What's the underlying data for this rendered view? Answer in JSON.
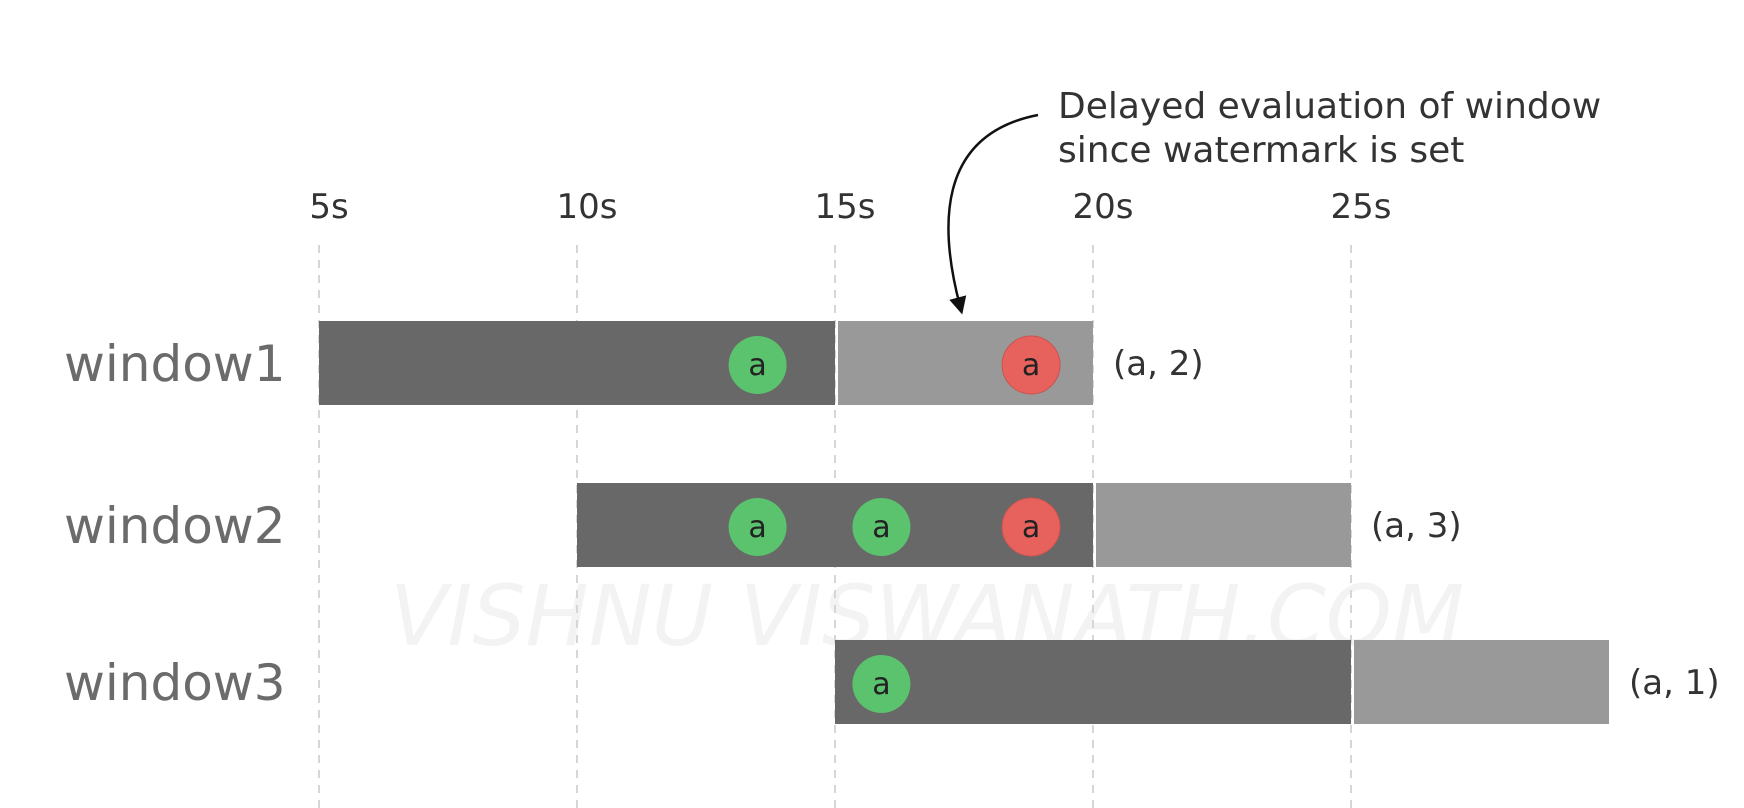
{
  "time_axis": {
    "unit": "s",
    "ticks": [
      {
        "value": 5,
        "label": "5s"
      },
      {
        "value": 10,
        "label": "10s"
      },
      {
        "value": 15,
        "label": "15s"
      },
      {
        "value": 20,
        "label": "20s"
      },
      {
        "value": 25,
        "label": "25s"
      }
    ]
  },
  "annotation": {
    "lines": [
      "Delayed evaluation of window",
      "since watermark is set"
    ],
    "points_to_time": 17.5
  },
  "windows": [
    {
      "label": "window1",
      "start": 5,
      "end": 15,
      "delayed_end": 20,
      "result": "(a, 2)",
      "events": [
        {
          "key": "a",
          "time": 13.5,
          "kind": "on-time",
          "color": "#5bc26e"
        },
        {
          "key": "a",
          "time": 18.8,
          "kind": "late",
          "color": "#e8625d"
        }
      ]
    },
    {
      "label": "window2",
      "start": 10,
      "end": 20,
      "delayed_end": 25,
      "result": "(a, 3)",
      "events": [
        {
          "key": "a",
          "time": 13.5,
          "kind": "on-time",
          "color": "#5bc26e"
        },
        {
          "key": "a",
          "time": 15.9,
          "kind": "on-time",
          "color": "#5bc26e"
        },
        {
          "key": "a",
          "time": 18.8,
          "kind": "late",
          "color": "#e8625d"
        }
      ]
    },
    {
      "label": "window3",
      "start": 15,
      "end": 25,
      "delayed_end": 30,
      "result": "(a, 1)",
      "events": [
        {
          "key": "a",
          "time": 15.9,
          "kind": "on-time",
          "color": "#5bc26e"
        }
      ]
    }
  ],
  "colors": {
    "window_bar": "#686868",
    "delay_bar": "#999999",
    "gridline": "#d6d6d6",
    "on_time_event": "#5bc26e",
    "late_event": "#e8625d"
  },
  "watermark": "VISHNU VISWANATH.COM"
}
